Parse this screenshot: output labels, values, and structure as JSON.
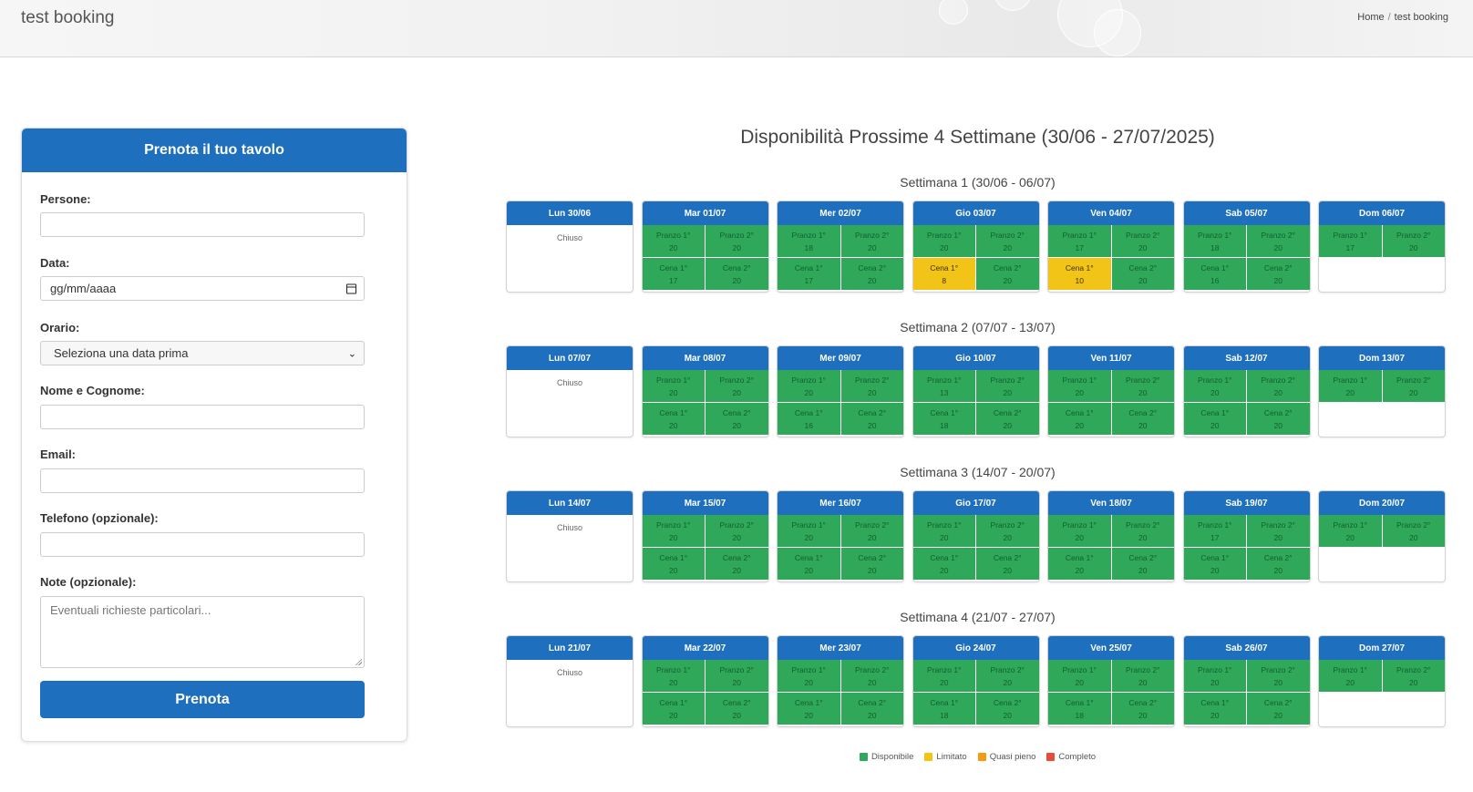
{
  "header": {
    "site_title": "test booking",
    "breadcrumb": {
      "home": "Home",
      "separator": "/",
      "current": "test booking"
    }
  },
  "form": {
    "title": "Prenota il tuo tavolo",
    "fields": {
      "persone": {
        "label": "Persone:",
        "value": ""
      },
      "data": {
        "label": "Data:",
        "value": "gg/mm/aaaa"
      },
      "orario": {
        "label": "Orario:",
        "value": "Seleziona una data prima"
      },
      "nome": {
        "label": "Nome e Cognome:",
        "value": ""
      },
      "email": {
        "label": "Email:",
        "value": ""
      },
      "telefono": {
        "label": "Telefono (opzionale):",
        "value": ""
      },
      "note": {
        "label": "Note (opzionale):",
        "placeholder": "Eventuali richieste particolari..."
      }
    },
    "submit_label": "Prenota"
  },
  "availability": {
    "title": "Disponibilità Prossime 4 Settimane (30/06 - 27/07/2025)",
    "closed_label": "Chiuso",
    "weeks": [
      {
        "title": "Settimana 1 (30/06 - 06/07)",
        "days": [
          {
            "label": "Lun 30/06",
            "closed": true
          },
          {
            "label": "Mar 01/07",
            "slots": [
              [
                "Pranzo 1°",
                "20",
                "available"
              ],
              [
                "Pranzo 2°",
                "20",
                "available"
              ],
              [
                "Cena 1°",
                "17",
                "available"
              ],
              [
                "Cena 2°",
                "20",
                "available"
              ]
            ]
          },
          {
            "label": "Mer 02/07",
            "slots": [
              [
                "Pranzo 1°",
                "18",
                "available"
              ],
              [
                "Pranzo 2°",
                "20",
                "available"
              ],
              [
                "Cena 1°",
                "17",
                "available"
              ],
              [
                "Cena 2°",
                "20",
                "available"
              ]
            ]
          },
          {
            "label": "Gio 03/07",
            "slots": [
              [
                "Pranzo 1°",
                "20",
                "available"
              ],
              [
                "Pranzo 2°",
                "20",
                "available"
              ],
              [
                "Cena 1°",
                "8",
                "limited"
              ],
              [
                "Cena 2°",
                "20",
                "available"
              ]
            ]
          },
          {
            "label": "Ven 04/07",
            "slots": [
              [
                "Pranzo 1°",
                "17",
                "available"
              ],
              [
                "Pranzo 2°",
                "20",
                "available"
              ],
              [
                "Cena 1°",
                "10",
                "limited"
              ],
              [
                "Cena 2°",
                "20",
                "available"
              ]
            ]
          },
          {
            "label": "Sab 05/07",
            "slots": [
              [
                "Pranzo 1°",
                "18",
                "available"
              ],
              [
                "Pranzo 2°",
                "20",
                "available"
              ],
              [
                "Cena 1°",
                "16",
                "available"
              ],
              [
                "Cena 2°",
                "20",
                "available"
              ]
            ]
          },
          {
            "label": "Dom 06/07",
            "slots": [
              [
                "Pranzo 1°",
                "17",
                "available"
              ],
              [
                "Pranzo 2°",
                "20",
                "available"
              ]
            ]
          }
        ]
      },
      {
        "title": "Settimana 2 (07/07 - 13/07)",
        "days": [
          {
            "label": "Lun 07/07",
            "closed": true
          },
          {
            "label": "Mar 08/07",
            "slots": [
              [
                "Pranzo 1°",
                "20",
                "available"
              ],
              [
                "Pranzo 2°",
                "20",
                "available"
              ],
              [
                "Cena 1°",
                "20",
                "available"
              ],
              [
                "Cena 2°",
                "20",
                "available"
              ]
            ]
          },
          {
            "label": "Mer 09/07",
            "slots": [
              [
                "Pranzo 1°",
                "20",
                "available"
              ],
              [
                "Pranzo 2°",
                "20",
                "available"
              ],
              [
                "Cena 1°",
                "16",
                "available"
              ],
              [
                "Cena 2°",
                "20",
                "available"
              ]
            ]
          },
          {
            "label": "Gio 10/07",
            "slots": [
              [
                "Pranzo 1°",
                "13",
                "available"
              ],
              [
                "Pranzo 2°",
                "20",
                "available"
              ],
              [
                "Cena 1°",
                "18",
                "available"
              ],
              [
                "Cena 2°",
                "20",
                "available"
              ]
            ]
          },
          {
            "label": "Ven 11/07",
            "slots": [
              [
                "Pranzo 1°",
                "20",
                "available"
              ],
              [
                "Pranzo 2°",
                "20",
                "available"
              ],
              [
                "Cena 1°",
                "20",
                "available"
              ],
              [
                "Cena 2°",
                "20",
                "available"
              ]
            ]
          },
          {
            "label": "Sab 12/07",
            "slots": [
              [
                "Pranzo 1°",
                "20",
                "available"
              ],
              [
                "Pranzo 2°",
                "20",
                "available"
              ],
              [
                "Cena 1°",
                "20",
                "available"
              ],
              [
                "Cena 2°",
                "20",
                "available"
              ]
            ]
          },
          {
            "label": "Dom 13/07",
            "slots": [
              [
                "Pranzo 1°",
                "20",
                "available"
              ],
              [
                "Pranzo 2°",
                "20",
                "available"
              ]
            ]
          }
        ]
      },
      {
        "title": "Settimana 3 (14/07 - 20/07)",
        "days": [
          {
            "label": "Lun 14/07",
            "closed": true
          },
          {
            "label": "Mar 15/07",
            "slots": [
              [
                "Pranzo 1°",
                "20",
                "available"
              ],
              [
                "Pranzo 2°",
                "20",
                "available"
              ],
              [
                "Cena 1°",
                "20",
                "available"
              ],
              [
                "Cena 2°",
                "20",
                "available"
              ]
            ]
          },
          {
            "label": "Mer 16/07",
            "slots": [
              [
                "Pranzo 1°",
                "20",
                "available"
              ],
              [
                "Pranzo 2°",
                "20",
                "available"
              ],
              [
                "Cena 1°",
                "20",
                "available"
              ],
              [
                "Cena 2°",
                "20",
                "available"
              ]
            ]
          },
          {
            "label": "Gio 17/07",
            "slots": [
              [
                "Pranzo 1°",
                "20",
                "available"
              ],
              [
                "Pranzo 2°",
                "20",
                "available"
              ],
              [
                "Cena 1°",
                "20",
                "available"
              ],
              [
                "Cena 2°",
                "20",
                "available"
              ]
            ]
          },
          {
            "label": "Ven 18/07",
            "slots": [
              [
                "Pranzo 1°",
                "20",
                "available"
              ],
              [
                "Pranzo 2°",
                "20",
                "available"
              ],
              [
                "Cena 1°",
                "20",
                "available"
              ],
              [
                "Cena 2°",
                "20",
                "available"
              ]
            ]
          },
          {
            "label": "Sab 19/07",
            "slots": [
              [
                "Pranzo 1°",
                "17",
                "available"
              ],
              [
                "Pranzo 2°",
                "20",
                "available"
              ],
              [
                "Cena 1°",
                "20",
                "available"
              ],
              [
                "Cena 2°",
                "20",
                "available"
              ]
            ]
          },
          {
            "label": "Dom 20/07",
            "slots": [
              [
                "Pranzo 1°",
                "20",
                "available"
              ],
              [
                "Pranzo 2°",
                "20",
                "available"
              ]
            ]
          }
        ]
      },
      {
        "title": "Settimana 4 (21/07 - 27/07)",
        "days": [
          {
            "label": "Lun 21/07",
            "closed": true
          },
          {
            "label": "Mar 22/07",
            "slots": [
              [
                "Pranzo 1°",
                "20",
                "available"
              ],
              [
                "Pranzo 2°",
                "20",
                "available"
              ],
              [
                "Cena 1°",
                "20",
                "available"
              ],
              [
                "Cena 2°",
                "20",
                "available"
              ]
            ]
          },
          {
            "label": "Mer 23/07",
            "slots": [
              [
                "Pranzo 1°",
                "20",
                "available"
              ],
              [
                "Pranzo 2°",
                "20",
                "available"
              ],
              [
                "Cena 1°",
                "20",
                "available"
              ],
              [
                "Cena 2°",
                "20",
                "available"
              ]
            ]
          },
          {
            "label": "Gio 24/07",
            "slots": [
              [
                "Pranzo 1°",
                "20",
                "available"
              ],
              [
                "Pranzo 2°",
                "20",
                "available"
              ],
              [
                "Cena 1°",
                "18",
                "available"
              ],
              [
                "Cena 2°",
                "20",
                "available"
              ]
            ]
          },
          {
            "label": "Ven 25/07",
            "slots": [
              [
                "Pranzo 1°",
                "20",
                "available"
              ],
              [
                "Pranzo 2°",
                "20",
                "available"
              ],
              [
                "Cena 1°",
                "18",
                "available"
              ],
              [
                "Cena 2°",
                "20",
                "available"
              ]
            ]
          },
          {
            "label": "Sab 26/07",
            "slots": [
              [
                "Pranzo 1°",
                "20",
                "available"
              ],
              [
                "Pranzo 2°",
                "20",
                "available"
              ],
              [
                "Cena 1°",
                "20",
                "available"
              ],
              [
                "Cena 2°",
                "20",
                "available"
              ]
            ]
          },
          {
            "label": "Dom 27/07",
            "slots": [
              [
                "Pranzo 1°",
                "20",
                "available"
              ],
              [
                "Pranzo 2°",
                "20",
                "available"
              ]
            ]
          }
        ]
      }
    ],
    "legend": [
      {
        "label": "Disponibile",
        "color": "#2fa85a"
      },
      {
        "label": "Limitato",
        "color": "#f2c418"
      },
      {
        "label": "Quasi pieno",
        "color": "#f39c12"
      },
      {
        "label": "Completo",
        "color": "#e74c3c"
      }
    ]
  },
  "colors": {
    "primary": "#1f6fbf",
    "available": "#2fa85a",
    "limited": "#f2c418"
  }
}
